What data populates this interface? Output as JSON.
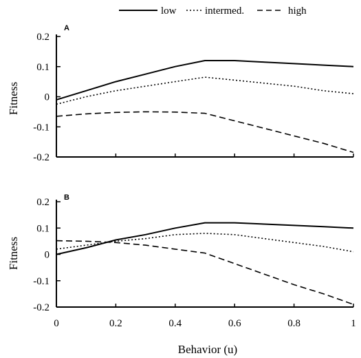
{
  "chart_data": [
    {
      "type": "line",
      "panel_label": "A",
      "x": [
        0,
        0.5,
        1
      ],
      "series": [
        {
          "name": "low",
          "style": "solid",
          "x": [
            0,
            0.1,
            0.2,
            0.3,
            0.4,
            0.5,
            0.6,
            0.7,
            0.8,
            0.9,
            1.0
          ],
          "y": [
            -0.01,
            0.02,
            0.05,
            0.075,
            0.1,
            0.12,
            0.12,
            0.115,
            0.11,
            0.105,
            0.1
          ]
        },
        {
          "name": "intermed.",
          "style": "dotted",
          "x": [
            0,
            0.1,
            0.2,
            0.3,
            0.4,
            0.5,
            0.6,
            0.7,
            0.8,
            0.9,
            1.0
          ],
          "y": [
            -0.025,
            0.0,
            0.02,
            0.035,
            0.05,
            0.065,
            0.055,
            0.045,
            0.035,
            0.02,
            0.01
          ]
        },
        {
          "name": "high",
          "style": "dashed",
          "x": [
            0,
            0.1,
            0.2,
            0.3,
            0.4,
            0.5,
            0.6,
            0.7,
            0.8,
            0.9,
            1.0
          ],
          "y": [
            -0.065,
            -0.057,
            -0.052,
            -0.05,
            -0.051,
            -0.055,
            -0.08,
            -0.105,
            -0.13,
            -0.155,
            -0.185
          ]
        }
      ],
      "xlim": [
        0,
        1
      ],
      "ylim": [
        -0.2,
        0.2
      ],
      "yticks": [
        "0.2",
        "0.1",
        "0",
        "-0.1",
        "-0.2"
      ],
      "ytick_values": [
        0.2,
        0.1,
        0,
        -0.1,
        -0.2
      ],
      "xticks": [
        0,
        0.2,
        0.4,
        0.6,
        0.8,
        1
      ],
      "ylabel": "Fitness",
      "xlabel": ""
    },
    {
      "type": "line",
      "panel_label": "B",
      "series": [
        {
          "name": "low",
          "style": "solid",
          "x": [
            0,
            0.1,
            0.2,
            0.3,
            0.4,
            0.5,
            0.6,
            0.7,
            0.8,
            0.9,
            1.0
          ],
          "y": [
            0.0,
            0.025,
            0.055,
            0.075,
            0.1,
            0.12,
            0.12,
            0.115,
            0.11,
            0.105,
            0.1
          ]
        },
        {
          "name": "intermed.",
          "style": "dotted",
          "x": [
            0,
            0.1,
            0.2,
            0.3,
            0.4,
            0.5,
            0.6,
            0.7,
            0.8,
            0.9,
            1.0
          ],
          "y": [
            0.02,
            0.035,
            0.05,
            0.06,
            0.075,
            0.08,
            0.075,
            0.06,
            0.045,
            0.03,
            0.01
          ]
        },
        {
          "name": "high",
          "style": "dashed",
          "x": [
            0,
            0.1,
            0.2,
            0.3,
            0.4,
            0.5,
            0.6,
            0.7,
            0.8,
            0.9,
            1.0
          ],
          "y": [
            0.052,
            0.05,
            0.045,
            0.035,
            0.02,
            0.005,
            -0.035,
            -0.075,
            -0.115,
            -0.15,
            -0.19
          ]
        }
      ],
      "xlim": [
        0,
        1
      ],
      "ylim": [
        -0.2,
        0.2
      ],
      "yticks": [
        "0.2",
        "0.1",
        "0",
        "-0.1",
        "-0.2"
      ],
      "ytick_values": [
        0.2,
        0.1,
        0,
        -0.1,
        -0.2
      ],
      "xticks": [
        "0",
        "0.2",
        "0.4",
        "0.6",
        "0.8",
        "1"
      ],
      "xtick_values": [
        0,
        0.2,
        0.4,
        0.6,
        0.8,
        1
      ],
      "ylabel": "Fitness",
      "xlabel": "Behavior (u)"
    }
  ],
  "legend": {
    "placement": "top",
    "entries": [
      {
        "label": "low",
        "style": "solid"
      },
      {
        "label": "intermed.",
        "style": "dotted"
      },
      {
        "label": "high",
        "style": "dashed"
      }
    ]
  }
}
